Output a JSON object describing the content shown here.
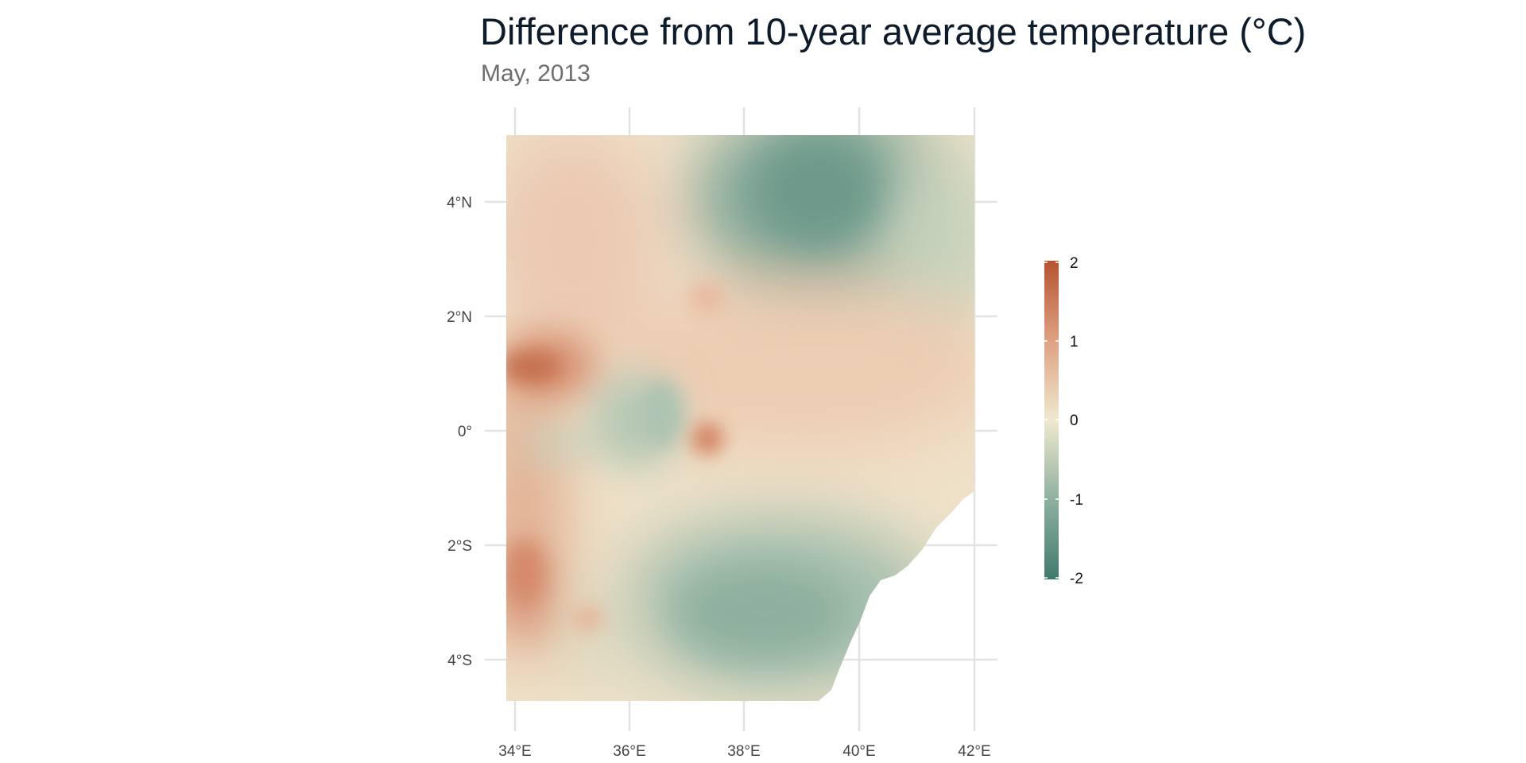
{
  "title": "Difference from 10-year average temperature (°C)",
  "subtitle": "May, 2013",
  "x_ticks": [
    "34°E",
    "36°E",
    "38°E",
    "40°E",
    "42°E"
  ],
  "y_ticks": [
    "4°N",
    "2°N",
    "0°",
    "2°S",
    "4°S"
  ],
  "legend": {
    "labels": [
      "2",
      "1",
      "0",
      "-1",
      "-2"
    ],
    "colors": {
      "high": "#b5532f",
      "mid": "#efe9cf",
      "low": "#3f7a6e"
    }
  },
  "chart_data": {
    "type": "heatmap",
    "title": "Difference from 10-year average temperature (°C)",
    "subtitle": "May, 2013",
    "x_range": [
      33.9,
      42.0
    ],
    "y_range": [
      -4.8,
      5.1
    ],
    "value_range": [
      -2,
      2
    ],
    "x_ticks": [
      34,
      36,
      38,
      40,
      42
    ],
    "y_ticks": [
      4,
      2,
      0,
      -2,
      -4
    ],
    "regions": [
      {
        "label": "northwest",
        "value": 0.5
      },
      {
        "label": "west band near 1°N",
        "value": 1.6
      },
      {
        "label": "west edge near 2°S",
        "value": 1.3
      },
      {
        "label": "northeast near 39°E 4°N",
        "value": -1.5
      },
      {
        "label": "center-east near 40°E 1°N",
        "value": 0.5
      },
      {
        "label": "south near 38.5°E 3.5°S",
        "value": -1.2
      },
      {
        "label": "center near 36.5°E 0°",
        "value": -0.6
      },
      {
        "label": "spot near 37.3°E 0°",
        "value": 1.4
      }
    ]
  }
}
